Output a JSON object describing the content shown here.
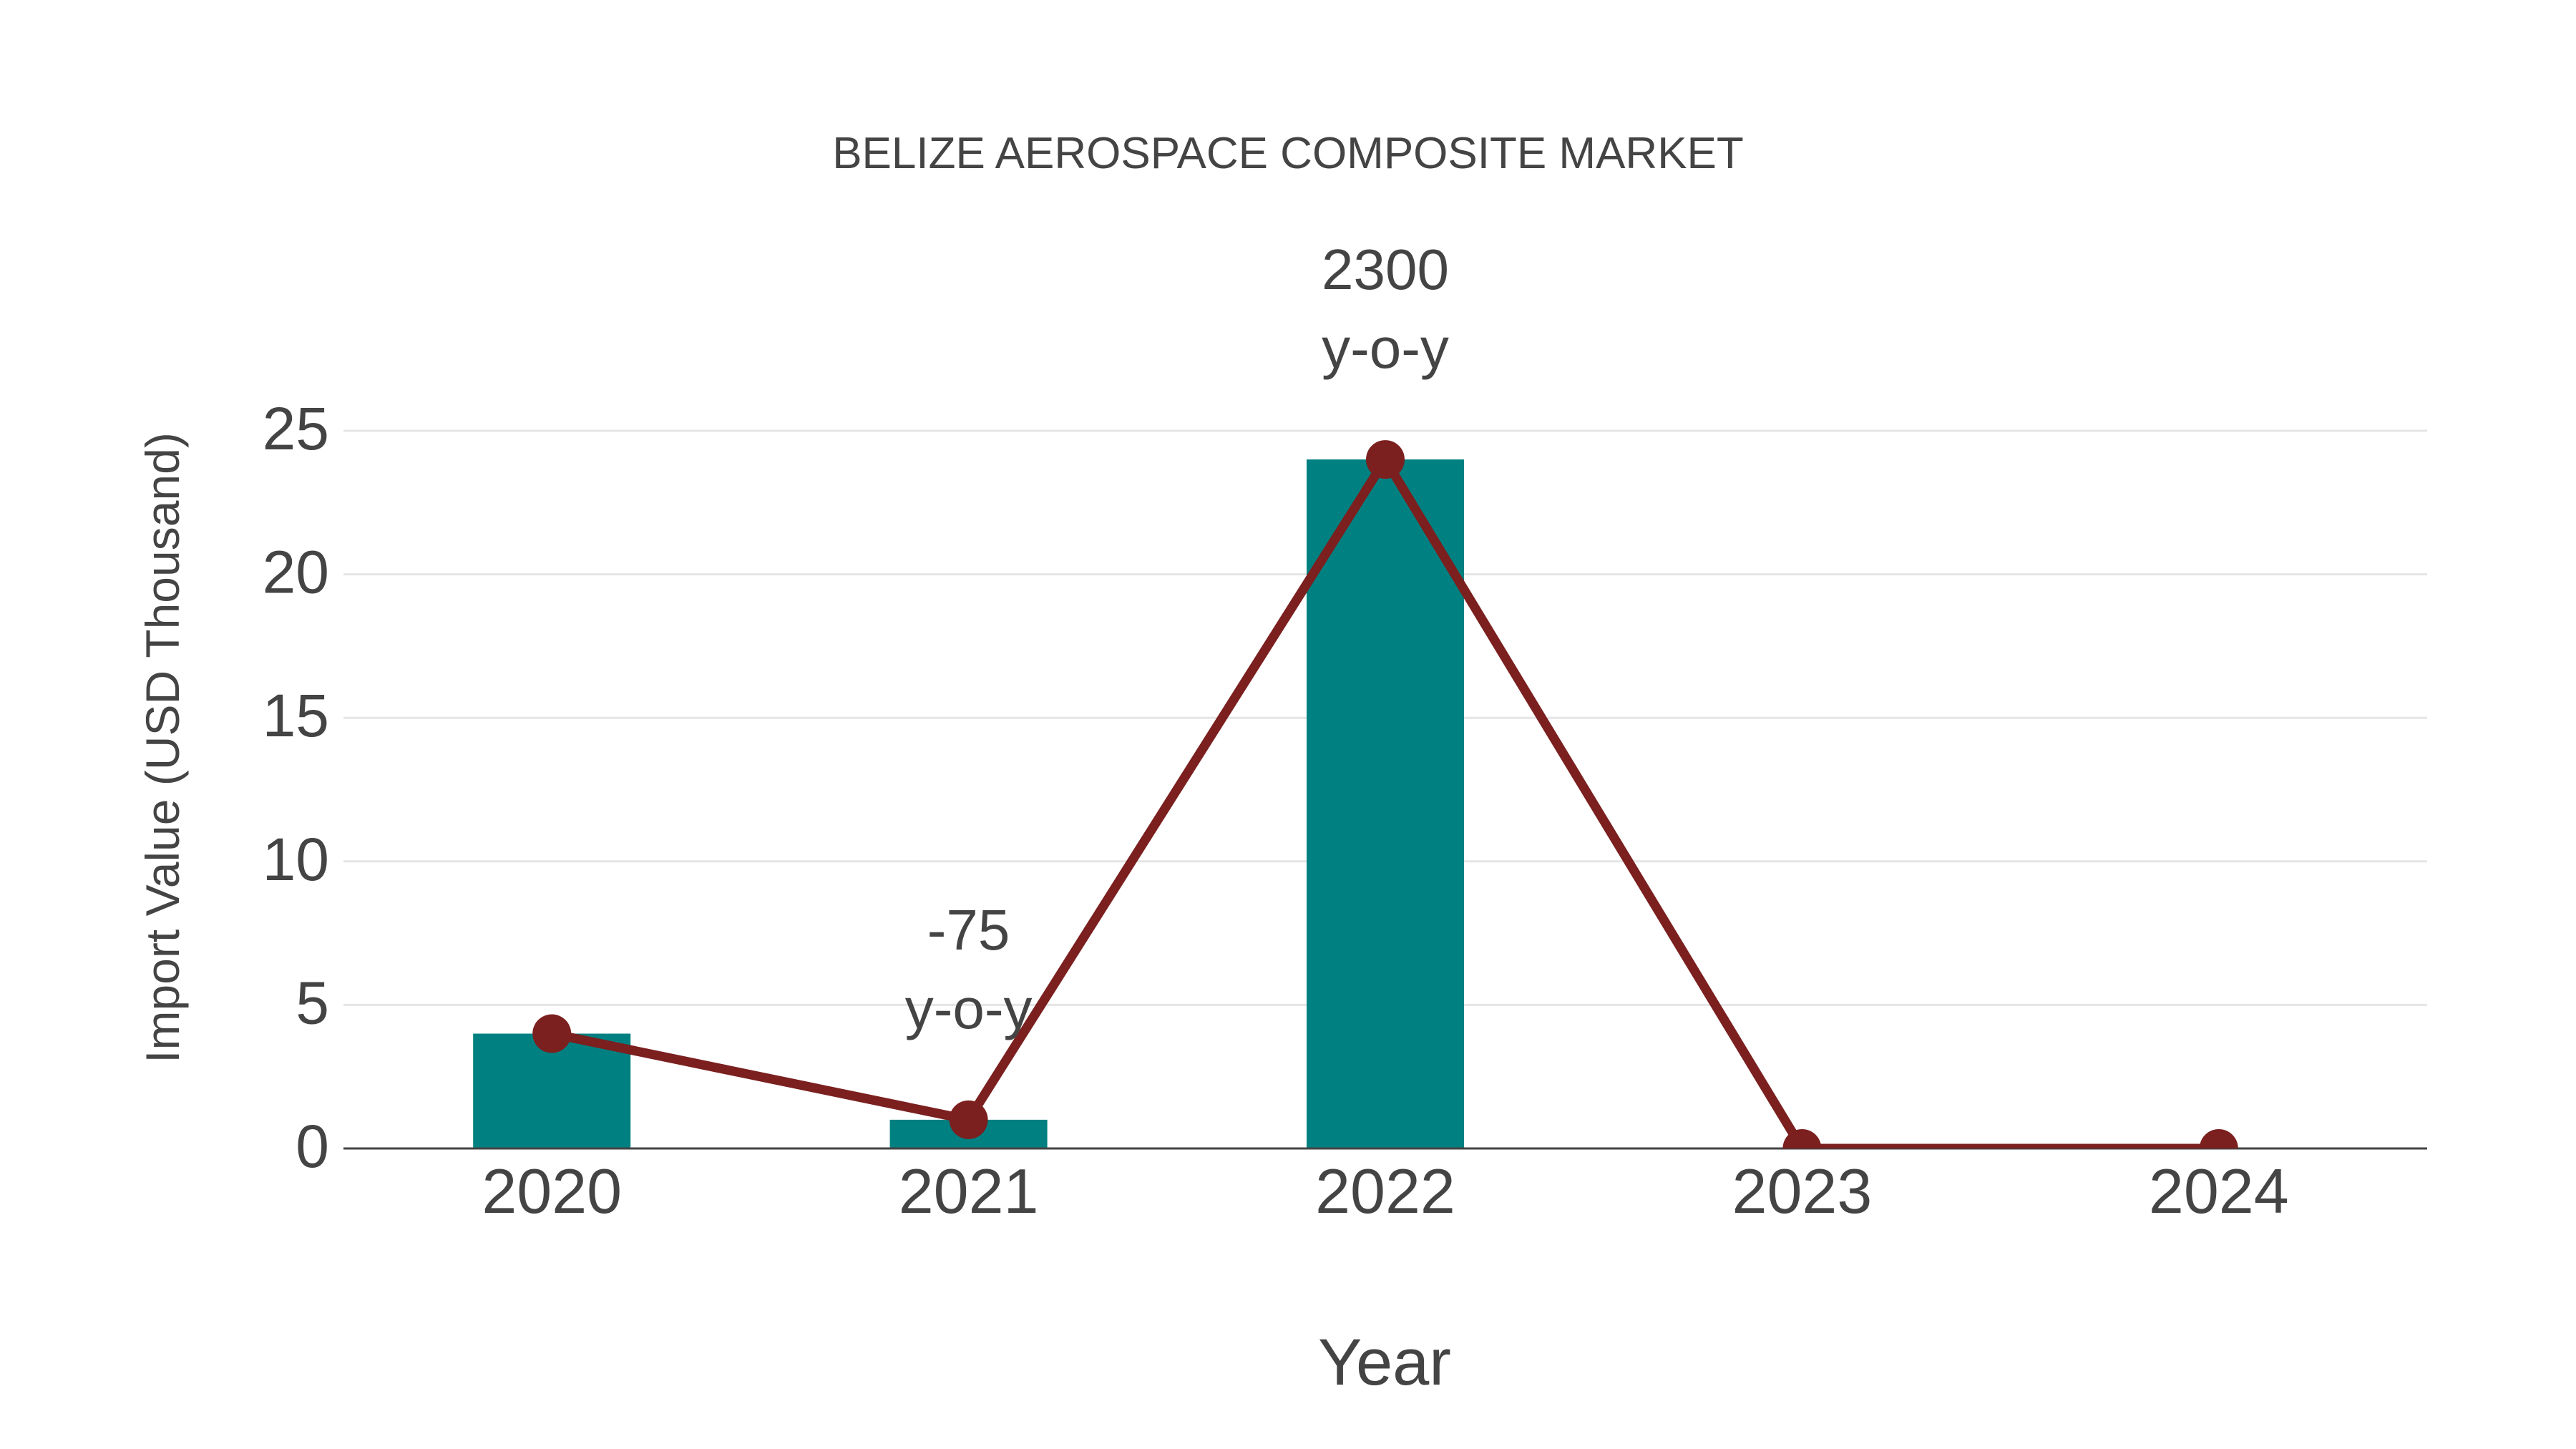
{
  "chart_data": {
    "type": "bar",
    "title": "BELIZE AEROSPACE COMPOSITE MARKET",
    "xlabel": "Year",
    "ylabel": "Import Value (USD Thousand)",
    "categories": [
      "2020",
      "2021",
      "2022",
      "2023",
      "2024"
    ],
    "series": [
      {
        "name": "Import Value (bar)",
        "type": "bar",
        "color": "#008080",
        "values": [
          4,
          1,
          24,
          0,
          0
        ]
      },
      {
        "name": "Import Value (line)",
        "type": "line",
        "color": "#7B1F1F",
        "values": [
          4,
          1,
          24,
          0,
          0
        ]
      }
    ],
    "annotations": [
      {
        "category": "2021",
        "line1": "-75",
        "line2": "y-o-y"
      },
      {
        "category": "2022",
        "line1": "2300",
        "line2": "y-o-y"
      }
    ],
    "yticks": [
      0,
      5,
      10,
      15,
      20,
      25
    ],
    "ylim": [
      0,
      25
    ],
    "grid": true,
    "legend": "none"
  },
  "colors": {
    "bar": "#008080",
    "line": "#7B1F1F",
    "text": "#444444",
    "grid": "#e5e5e5",
    "axis": "#444444"
  }
}
